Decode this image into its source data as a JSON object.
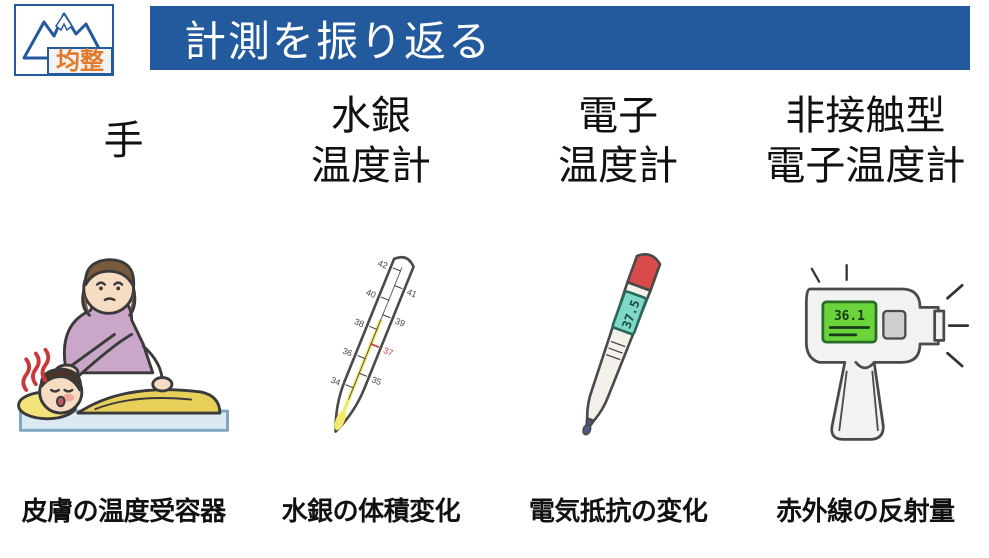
{
  "header": {
    "title": "計測を振り返る"
  },
  "logo": {
    "text": "均整",
    "mountain_color": "#235a9e",
    "text_bg": "#f2f2f2",
    "text_color": "#e07a2a",
    "border_color": "#235a9e"
  },
  "columns": [
    {
      "title": "手",
      "caption": "皮膚の温度受容器",
      "illustration": {
        "type": "hand_check",
        "skin": "#f7dcc4",
        "hair_mother": "#7a5a3d",
        "hair_child": "#4a3526",
        "shirt": "#caa7c9",
        "blanket": "#e8cf5a",
        "pillow": "#f2e37a",
        "bed": "#dbeaf2",
        "bed_edge": "#7da5bf",
        "heat": "#c83a3a",
        "cheek": "#f0a79a",
        "mouth": "#b85a5a",
        "stroke": "#3a3a3a"
      }
    },
    {
      "title": "水銀\n温度計",
      "caption": "水銀の体積変化",
      "illustration": {
        "type": "mercury_thermometer",
        "body": "#ffffff",
        "stroke": "#4a4a4a",
        "scale_color": "#444444",
        "mark37_color": "#c83a3a",
        "mercury": "#f5e96a",
        "ticks": [
          "34",
          "35",
          "36",
          "37",
          "38",
          "39",
          "40",
          "41",
          "42"
        ]
      }
    },
    {
      "title": "電子\n温度計",
      "caption": "電気抵抗の変化",
      "illustration": {
        "type": "digital_thermometer",
        "body": "#f4f1ea",
        "stroke": "#4a4a4a",
        "tip": "#4a5a8a",
        "cap": "#d94a4a",
        "screen": "#7fd8c8",
        "screen_border": "#2a6a5a",
        "reading": "37.5",
        "digit_color": "#1a4a42"
      }
    },
    {
      "title": "非接触型\n電子温度計",
      "caption": "赤外線の反射量",
      "illustration": {
        "type": "ir_thermometer",
        "body": "#f2f2f2",
        "stroke": "#4a4a4a",
        "screen": "#6ad43a",
        "screen_border": "#2a6a2a",
        "reading": "36.1",
        "button": "#cfcfcf",
        "rays": "#333333"
      }
    }
  ],
  "layout": {
    "slide_w": 989,
    "slide_h": 558,
    "header_bg": "#235a9e",
    "header_fg": "#ffffff",
    "title_fontsize": 40,
    "caption_fontsize": 26,
    "header_fontsize": 42
  }
}
